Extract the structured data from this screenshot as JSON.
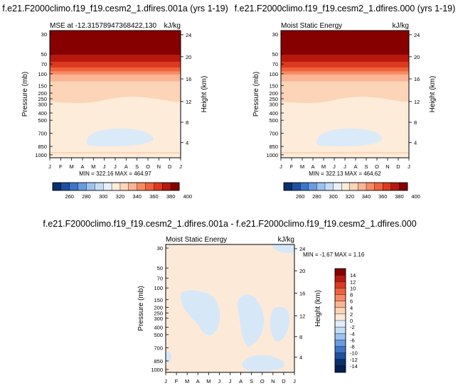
{
  "chart_data": [
    {
      "type": "heatmap",
      "title": "f.e21.F2000climo.f19_f19.cesm2_1.dfires.001a (yrs 1-19)",
      "left_label": "MSE at -12.31578947368422,130",
      "right_label": "kJ/kg",
      "stats": "MIN = 322.16  MAX = 464.97",
      "ylabel": "Pressure (mb)",
      "y2label": "Height (km)",
      "x_ticks": [
        "J",
        "F",
        "M",
        "A",
        "M",
        "J",
        "J",
        "A",
        "S",
        "O",
        "N",
        "D",
        "J"
      ],
      "pressure_ticks": [
        "30",
        "50",
        "70",
        "100",
        "150",
        "200",
        "250",
        "300",
        "400",
        "500",
        "700",
        "850",
        "1000"
      ],
      "height_ticks": [
        "24",
        "20",
        "16",
        "12",
        "8",
        "4"
      ],
      "colorbar_labels": [
        "260",
        "280",
        "300",
        "320",
        "340",
        "360",
        "380",
        "400"
      ],
      "colorbar_colors": [
        "#08306b",
        "#1f4fa3",
        "#3f75c9",
        "#6a9be0",
        "#9cc2ef",
        "#c6dcf4",
        "#e6f0fa",
        "#fdecd9",
        "#fcd4b8",
        "#fbb495",
        "#f78a62",
        "#ef623c",
        "#dc3a1f",
        "#b8180f",
        "#870000"
      ]
    },
    {
      "type": "heatmap",
      "title": "f.e21.F2000climo.f19_f19.cesm2_1.dfires.000 (yrs 1-19)",
      "left_label": "Moist Static Energy",
      "right_label": "kJ/kg",
      "stats": "MIN = 322.13  MAX = 464.62",
      "ylabel": "Pressure (mb)",
      "y2label": "Height (km)",
      "x_ticks": [
        "J",
        "F",
        "M",
        "A",
        "M",
        "J",
        "J",
        "A",
        "S",
        "O",
        "N",
        "D",
        "J"
      ],
      "pressure_ticks": [
        "30",
        "50",
        "70",
        "100",
        "150",
        "200",
        "250",
        "300",
        "400",
        "500",
        "700",
        "850",
        "1000"
      ],
      "height_ticks": [
        "24",
        "20",
        "16",
        "12",
        "8",
        "4"
      ],
      "colorbar_labels": [
        "260",
        "280",
        "300",
        "320",
        "340",
        "360",
        "380",
        "400"
      ],
      "colorbar_colors": [
        "#08306b",
        "#1f4fa3",
        "#3f75c9",
        "#6a9be0",
        "#9cc2ef",
        "#c6dcf4",
        "#e6f0fa",
        "#fdecd9",
        "#fcd4b8",
        "#fbb495",
        "#f78a62",
        "#ef623c",
        "#dc3a1f",
        "#b8180f",
        "#870000"
      ]
    },
    {
      "type": "heatmap",
      "title": "f.e21.F2000climo.f19_f19.cesm2_1.dfires.001a - f.e21.F2000climo.f19_f19.cesm2_1.dfires.000",
      "left_label": "Moist Static Energy",
      "right_label": "kJ/kg",
      "stats": "MIN = -1.67  MAX =   1.16",
      "ylabel": "Pressure (mb)",
      "y2label": "Height (km)",
      "x_ticks": [
        "J",
        "F",
        "M",
        "A",
        "M",
        "J",
        "J",
        "A",
        "S",
        "O",
        "N",
        "D",
        "J"
      ],
      "pressure_ticks": [
        "30",
        "50",
        "70",
        "100",
        "150",
        "200",
        "250",
        "300",
        "400",
        "500",
        "700",
        "850",
        "1000"
      ],
      "height_ticks": [
        "24",
        "20",
        "16",
        "12",
        "8",
        "4"
      ],
      "colorbar_labels": [
        "14",
        "12",
        "10",
        "8",
        "6",
        "4",
        "2",
        "0",
        "-2",
        "-4",
        "-6",
        "-8",
        "-10",
        "-12",
        "-14"
      ],
      "colorbar_colors": [
        "#870000",
        "#b8180f",
        "#dc3a1f",
        "#ef623c",
        "#f78a62",
        "#fbb495",
        "#fcd4b8",
        "#fde9d8",
        "#e1edf9",
        "#c6dcf4",
        "#9cc2ef",
        "#6a9be0",
        "#3f75c9",
        "#1f4fa3",
        "#08306b",
        "#061d52"
      ]
    }
  ]
}
